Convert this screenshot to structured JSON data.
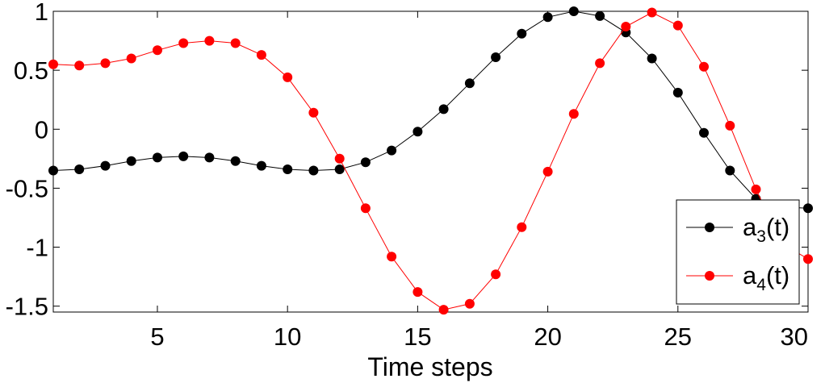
{
  "chart_data": {
    "type": "line",
    "title": "",
    "xlabel": "Time steps",
    "ylabel": "",
    "xlim": [
      1,
      30
    ],
    "ylim": [
      -1.55,
      1
    ],
    "xticks": [
      5,
      10,
      15,
      20,
      25,
      30
    ],
    "xtick_labels": [
      "5",
      "10",
      "15",
      "20",
      "25",
      "30"
    ],
    "yticks": [
      1,
      0.5,
      0,
      -0.5,
      -1,
      -1.5
    ],
    "ytick_labels": [
      "1",
      "0.5",
      "0",
      "-0.5",
      "-1",
      "-1.5"
    ],
    "grid": false,
    "legend_position": "bottom-right",
    "x": [
      1,
      2,
      3,
      4,
      5,
      6,
      7,
      8,
      9,
      10,
      11,
      12,
      13,
      14,
      15,
      16,
      17,
      18,
      19,
      20,
      21,
      22,
      23,
      24,
      25,
      26,
      27,
      28,
      29,
      30
    ],
    "series": [
      {
        "name": "a3(t)",
        "label_base": "a",
        "label_sub": "3",
        "label_arg": "(t)",
        "color": "#000000",
        "values": [
          -0.35,
          -0.34,
          -0.31,
          -0.27,
          -0.24,
          -0.23,
          -0.24,
          -0.27,
          -0.31,
          -0.34,
          -0.35,
          -0.34,
          -0.28,
          -0.18,
          -0.02,
          0.17,
          0.39,
          0.61,
          0.81,
          0.95,
          1.0,
          0.96,
          0.82,
          0.6,
          0.31,
          -0.03,
          -0.35,
          -0.59,
          -0.66,
          -0.67
        ]
      },
      {
        "name": "a4(t)",
        "label_base": "a",
        "label_sub": "4",
        "label_arg": "(t)",
        "color": "#ff0000",
        "values": [
          0.55,
          0.54,
          0.56,
          0.6,
          0.67,
          0.73,
          0.75,
          0.73,
          0.63,
          0.44,
          0.14,
          -0.25,
          -0.67,
          -1.08,
          -1.38,
          -1.53,
          -1.48,
          -1.23,
          -0.83,
          -0.36,
          0.13,
          0.56,
          0.87,
          0.99,
          0.88,
          0.53,
          0.03,
          -0.51,
          -0.97,
          -1.1
        ]
      }
    ]
  }
}
